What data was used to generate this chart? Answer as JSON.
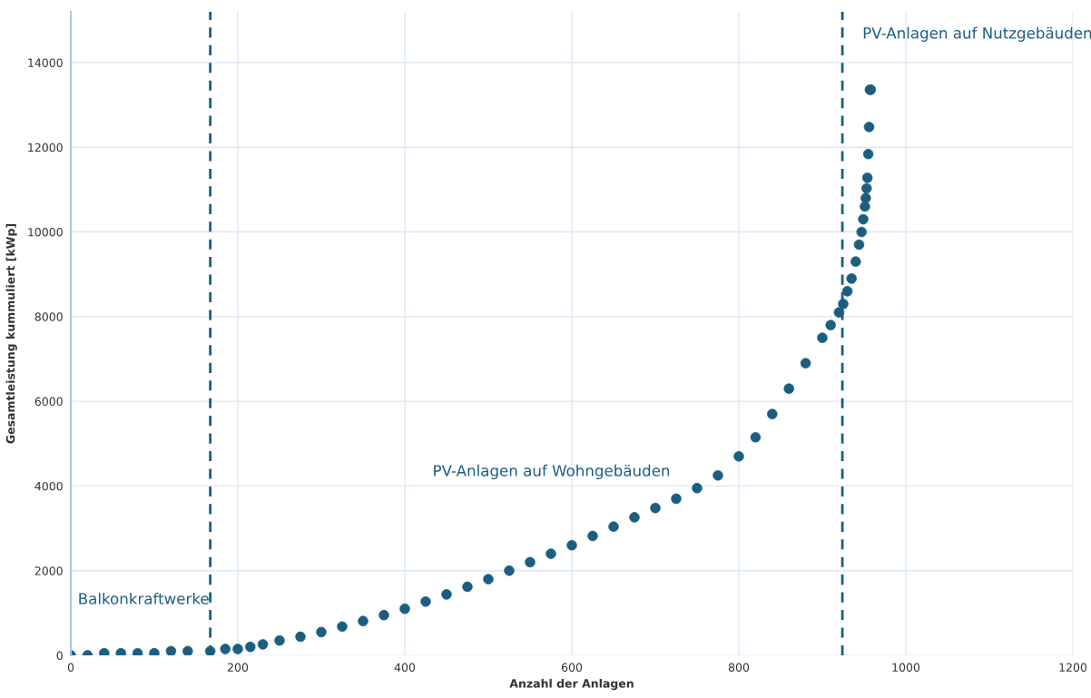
{
  "chart_data": {
    "type": "scatter",
    "xlabel": "Anzahl der Anlagen",
    "ylabel": "Gesamtleistung kummuliert [kWp]",
    "xlim": [
      0,
      1200
    ],
    "xticks": [
      0,
      200,
      400,
      600,
      800,
      1000,
      1200
    ],
    "ylim": [
      0,
      15200
    ],
    "yticks": [
      0,
      2000,
      4000,
      6000,
      8000,
      10000,
      12000,
      14000
    ],
    "grid": true,
    "marker": "circle",
    "series": [
      {
        "color": "#1b5e80",
        "x": [
          0,
          20,
          40,
          60,
          80,
          100,
          120,
          140,
          167,
          185,
          200,
          215,
          230,
          250,
          275,
          300,
          325,
          350,
          375,
          400,
          425,
          450,
          475,
          500,
          525,
          550,
          575,
          600,
          625,
          650,
          675,
          700,
          725,
          750,
          775,
          800,
          820,
          840,
          860,
          880,
          900,
          910,
          920,
          925,
          930,
          935,
          940,
          944,
          947,
          949,
          951,
          952,
          953,
          954,
          955,
          956,
          957,
          958
        ],
        "values": [
          0,
          0,
          50,
          50,
          50,
          50,
          100,
          100,
          100,
          150,
          150,
          200,
          260,
          350,
          440,
          550,
          680,
          810,
          950,
          1100,
          1270,
          1440,
          1620,
          1800,
          2000,
          2200,
          2400,
          2600,
          2820,
          3040,
          3260,
          3480,
          3700,
          3950,
          4250,
          4700,
          5150,
          5700,
          6300,
          6900,
          7500,
          7800,
          8100,
          8300,
          8600,
          8900,
          9300,
          9700,
          10000,
          10300,
          10600,
          10800,
          11030,
          11280,
          11840,
          12480,
          13360,
          13360
        ]
      }
    ],
    "ref_lines": [
      {
        "axis": "x",
        "value": 167,
        "color": "#1b5e80",
        "line_style": "dashed"
      },
      {
        "axis": "x",
        "value": 924,
        "color": "#1b5e80",
        "line_style": "dashed"
      }
    ],
    "annotations": [
      "Balkonkraftwerke",
      "PV-Anlagen auf Wohngebäuden",
      "PV-Anlagen auf Nutzgebäuden"
    ]
  }
}
